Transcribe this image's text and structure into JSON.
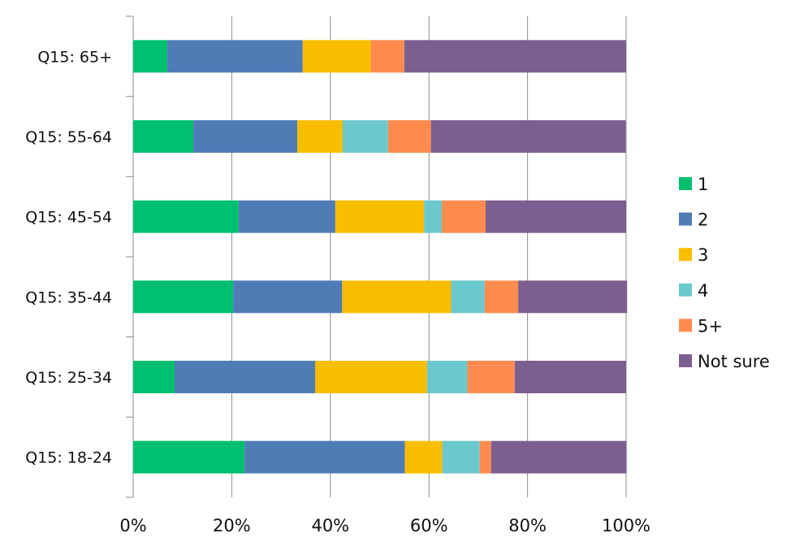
{
  "chart_data": {
    "type": "bar",
    "orientation": "horizontal",
    "stacked": "percent",
    "title": "",
    "xlabel": "",
    "ylabel": "",
    "xlim": [
      0,
      100
    ],
    "x_ticks": [
      "0%",
      "20%",
      "40%",
      "60%",
      "80%",
      "100%"
    ],
    "grid": true,
    "legend_position": "right",
    "categories": [
      "Q15: 65+",
      "Q15: 55-64",
      "Q15: 45-54",
      "Q15: 35-44",
      "Q15: 25-34",
      "Q15: 18-24"
    ],
    "series": [
      {
        "name": "1",
        "color": "#00BF6F",
        "values": [
          6.9,
          12.2,
          21.4,
          20.3,
          8.4,
          22.6
        ]
      },
      {
        "name": "2",
        "color": "#507CB6",
        "values": [
          27.5,
          21.1,
          19.6,
          22.1,
          28.5,
          32.5
        ]
      },
      {
        "name": "3",
        "color": "#F9BE00",
        "values": [
          13.8,
          9.2,
          18.0,
          22.1,
          22.7,
          7.6
        ]
      },
      {
        "name": "4",
        "color": "#6BC8CD",
        "values": [
          0,
          9.2,
          3.6,
          6.8,
          8.2,
          7.6
        ]
      },
      {
        "name": "5+",
        "color": "#FF8B4F",
        "values": [
          6.8,
          8.7,
          8.9,
          6.8,
          9.6,
          2.3
        ]
      },
      {
        "name": "Not sure",
        "color": "#7D5E90",
        "values": [
          45.0,
          39.5,
          28.5,
          22.1,
          22.6,
          27.5
        ]
      }
    ]
  }
}
